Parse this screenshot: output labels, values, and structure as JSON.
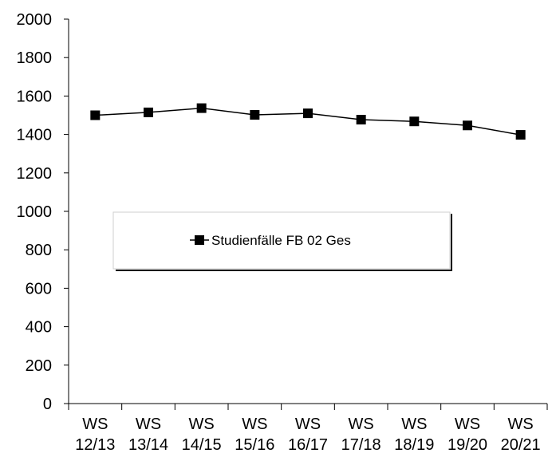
{
  "chart_data": {
    "type": "line",
    "title": "",
    "xlabel": "",
    "ylabel": "",
    "categories": [
      [
        "WS",
        "12/13"
      ],
      [
        "WS",
        "13/14"
      ],
      [
        "WS",
        "14/15"
      ],
      [
        "WS",
        "15/16"
      ],
      [
        "WS",
        "16/17"
      ],
      [
        "WS",
        "17/18"
      ],
      [
        "WS",
        "18/19"
      ],
      [
        "WS",
        "19/20"
      ],
      [
        "WS",
        "20/21"
      ]
    ],
    "series": [
      {
        "name": "Studienfälle FB 02 Ges",
        "values": [
          1500,
          1515,
          1537,
          1502,
          1510,
          1477,
          1468,
          1447,
          1398
        ],
        "color": "#000000",
        "marker": "square"
      }
    ],
    "ylim": [
      0,
      2000
    ],
    "yticks": [
      0,
      200,
      400,
      600,
      800,
      1000,
      1200,
      1400,
      1600,
      1800,
      2000
    ],
    "grid": false,
    "legend_position": "center-left"
  }
}
